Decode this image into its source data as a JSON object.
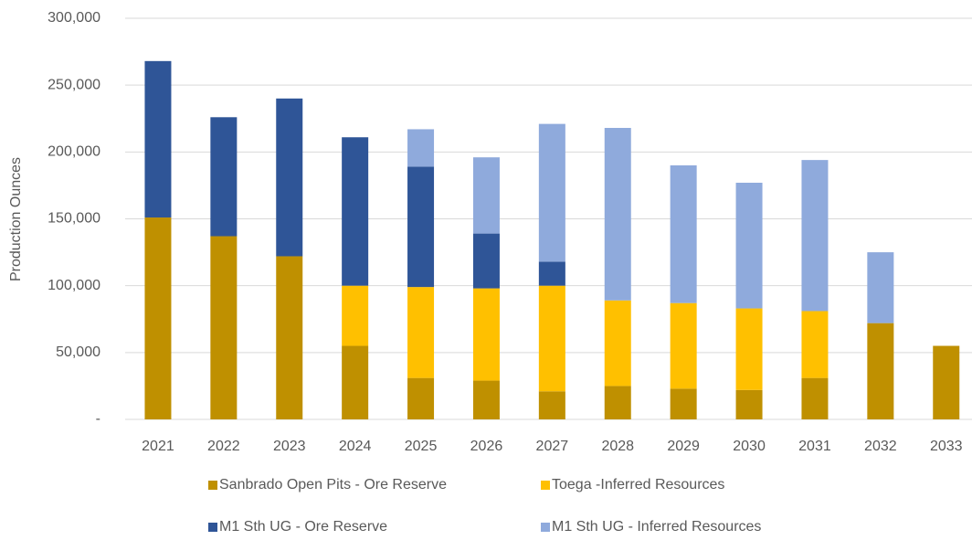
{
  "chart_data": {
    "type": "stacked_bar",
    "y_axis_label": "Production Ounces",
    "categories": [
      "2021",
      "2022",
      "2023",
      "2024",
      "2025",
      "2026",
      "2027",
      "2028",
      "2029",
      "2030",
      "2031",
      "2032",
      "2033"
    ],
    "series": [
      {
        "name": "Sanbrado Open Pits - Ore Reserve",
        "color": "#bf9000",
        "values": [
          151000,
          137000,
          122000,
          55000,
          31000,
          29000,
          21000,
          25000,
          23000,
          22000,
          31000,
          72000,
          55000
        ]
      },
      {
        "name": "Toega -Inferred Resources",
        "color": "#ffc000",
        "values": [
          0,
          0,
          0,
          45000,
          68000,
          69000,
          79000,
          64000,
          64000,
          61000,
          50000,
          0,
          0
        ]
      },
      {
        "name": "M1 Sth UG - Ore Reserve",
        "color": "#2f5597",
        "values": [
          117000,
          89000,
          118000,
          111000,
          90000,
          41000,
          18000,
          0,
          0,
          0,
          0,
          0,
          0
        ]
      },
      {
        "name": "M1 Sth UG - Inferred Resources",
        "color": "#8faadc",
        "values": [
          0,
          0,
          0,
          0,
          28000,
          57000,
          103000,
          129000,
          103000,
          94000,
          113000,
          53000,
          0
        ]
      }
    ],
    "ylim": [
      0,
      300000
    ],
    "yticks": [
      {
        "value": 0,
        "label": "-"
      },
      {
        "value": 50000,
        "label": "50,000"
      },
      {
        "value": 100000,
        "label": "100,000"
      },
      {
        "value": 150000,
        "label": "150,000"
      },
      {
        "value": 200000,
        "label": "200,000"
      },
      {
        "value": 250000,
        "label": "250,000"
      },
      {
        "value": 300000,
        "label": "300,000"
      }
    ],
    "grid": true,
    "legend": "bottom"
  }
}
